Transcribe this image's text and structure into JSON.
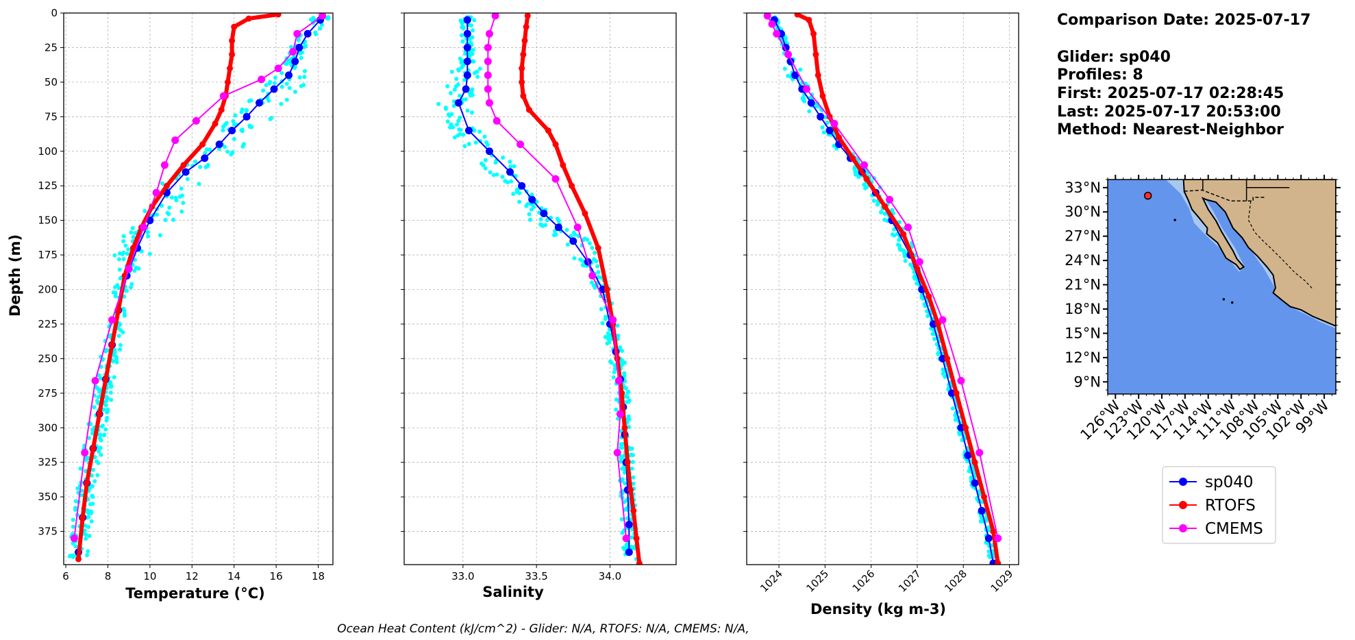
{
  "chart_data": [
    {
      "type": "line",
      "panel": "temperature",
      "xlabel": "Temperature (°C)",
      "ylabel": "Depth (m)",
      "xlim": [
        5.9,
        18.7
      ],
      "ylim": [
        399,
        0
      ],
      "xticks": [
        6,
        8,
        10,
        12,
        14,
        16,
        18
      ],
      "yticks": [
        0,
        25,
        50,
        75,
        100,
        125,
        150,
        175,
        200,
        225,
        250,
        275,
        300,
        325,
        350,
        375
      ],
      "grid": true,
      "series": [
        {
          "name": "sp040",
          "color": "#0000ff",
          "marker": "o",
          "x": [
            18.1,
            17.5,
            17.1,
            16.9,
            16.6,
            15.9,
            15.2,
            14.6,
            13.9,
            13.3,
            12.6,
            11.7,
            10.8,
            10.0,
            9.4,
            8.9,
            8.5,
            8.2,
            7.9,
            7.6,
            7.3,
            7.0,
            6.8,
            6.6
          ],
          "y": [
            5,
            15,
            25,
            35,
            45,
            55,
            65,
            75,
            85,
            95,
            105,
            115,
            130,
            150,
            170,
            190,
            215,
            240,
            265,
            290,
            315,
            340,
            365,
            390
          ]
        },
        {
          "name": "RTOFS",
          "color": "#ff0000",
          "marker": "o",
          "x": [
            16.1,
            14.7,
            14.0,
            13.9,
            13.9,
            13.8,
            13.7,
            13.6,
            13.4,
            13.1,
            12.5,
            11.6,
            10.8,
            10.1,
            9.6,
            9.2,
            8.8,
            8.5,
            8.2,
            7.9,
            7.6,
            7.3,
            7.0,
            6.8,
            6.6
          ],
          "y": [
            1,
            4,
            10,
            20,
            30,
            40,
            50,
            60,
            70,
            80,
            95,
            110,
            125,
            140,
            155,
            170,
            190,
            215,
            240,
            265,
            290,
            315,
            340,
            365,
            395
          ]
        },
        {
          "name": "CMEMS",
          "color": "#ff00ff",
          "marker": "o",
          "x": [
            18.2,
            17.0,
            16.8,
            16.1,
            15.3,
            13.5,
            12.2,
            11.2,
            10.7,
            10.3,
            9.7,
            9.0,
            8.2,
            7.4,
            6.9,
            6.4
          ],
          "y": [
            2,
            15,
            28,
            40,
            48,
            60,
            78,
            92,
            110,
            130,
            155,
            185,
            222,
            266,
            318,
            380
          ]
        }
      ]
    },
    {
      "type": "line",
      "panel": "salinity",
      "xlabel": "Salinity",
      "xlim": [
        32.6,
        34.45
      ],
      "ylim": [
        399,
        0
      ],
      "xticks": [
        "33.0",
        "33.5",
        "34.0"
      ],
      "grid": true,
      "series": [
        {
          "name": "sp040",
          "color": "#0000ff",
          "marker": "o",
          "x": [
            33.03,
            33.03,
            33.03,
            33.03,
            33.03,
            33.02,
            32.97,
            33.04,
            33.18,
            33.32,
            33.4,
            33.47,
            33.55,
            33.65,
            33.75,
            33.85,
            33.95,
            34.0,
            34.04,
            34.07,
            34.09,
            34.1,
            34.11,
            34.12,
            34.13,
            34.13
          ],
          "y": [
            5,
            15,
            25,
            35,
            45,
            55,
            65,
            85,
            100,
            115,
            125,
            135,
            145,
            155,
            165,
            180,
            200,
            225,
            245,
            265,
            285,
            305,
            325,
            345,
            370,
            390
          ]
        },
        {
          "name": "RTOFS",
          "color": "#ff0000",
          "marker": "o",
          "x": [
            33.44,
            33.43,
            33.42,
            33.41,
            33.4,
            33.4,
            33.41,
            33.45,
            33.58,
            33.63,
            33.68,
            33.74,
            33.83,
            33.92,
            33.98,
            34.02,
            34.05,
            34.08,
            34.1,
            34.12,
            34.14,
            34.16,
            34.18,
            34.2
          ],
          "y": [
            2,
            10,
            20,
            30,
            40,
            50,
            60,
            70,
            85,
            95,
            110,
            125,
            145,
            170,
            200,
            225,
            250,
            275,
            300,
            325,
            345,
            360,
            380,
            398
          ]
        },
        {
          "name": "CMEMS",
          "color": "#ff00ff",
          "marker": "o",
          "x": [
            33.22,
            33.18,
            33.17,
            33.17,
            33.17,
            33.17,
            33.18,
            33.23,
            33.39,
            33.63,
            33.78,
            33.88,
            34.02,
            34.06,
            34.07,
            34.05,
            34.11
          ],
          "y": [
            2,
            15,
            25,
            35,
            45,
            55,
            65,
            78,
            95,
            120,
            155,
            190,
            222,
            266,
            290,
            318,
            380
          ]
        }
      ]
    },
    {
      "type": "line",
      "panel": "density",
      "xlabel": "Density (kg m-3)",
      "xlim": [
        1023.3,
        1029.2
      ],
      "ylim": [
        399,
        0
      ],
      "xticks": [
        1024,
        1025,
        1026,
        1027,
        1028,
        1029
      ],
      "grid": true,
      "series": [
        {
          "name": "sp040",
          "color": "#0000ff",
          "marker": "o",
          "x": [
            1023.9,
            1024.05,
            1024.15,
            1024.25,
            1024.35,
            1024.5,
            1024.7,
            1024.9,
            1025.1,
            1025.3,
            1025.55,
            1025.8,
            1026.1,
            1026.45,
            1026.85,
            1027.1,
            1027.35,
            1027.55,
            1027.75,
            1027.95,
            1028.1,
            1028.25,
            1028.4,
            1028.55,
            1028.65
          ],
          "y": [
            5,
            15,
            25,
            35,
            45,
            55,
            65,
            75,
            85,
            95,
            105,
            115,
            130,
            150,
            175,
            200,
            225,
            250,
            275,
            300,
            320,
            340,
            360,
            380,
            398
          ]
        },
        {
          "name": "RTOFS",
          "color": "#ff0000",
          "marker": "o",
          "x": [
            1024.4,
            1024.65,
            1024.75,
            1024.8,
            1024.85,
            1024.95,
            1025.1,
            1025.3,
            1025.6,
            1025.9,
            1026.3,
            1026.7,
            1027.0,
            1027.25,
            1027.45,
            1027.65,
            1027.85,
            1028.05,
            1028.25,
            1028.45,
            1028.65,
            1028.75
          ],
          "y": [
            1,
            5,
            15,
            30,
            45,
            60,
            75,
            90,
            105,
            120,
            140,
            160,
            185,
            205,
            225,
            250,
            275,
            300,
            325,
            350,
            375,
            398
          ]
        },
        {
          "name": "CMEMS",
          "color": "#ff00ff",
          "marker": "o",
          "x": [
            1023.75,
            1023.85,
            1023.95,
            1024.2,
            1024.6,
            1025.2,
            1025.85,
            1026.4,
            1026.8,
            1027.05,
            1027.55,
            1027.95,
            1028.35,
            1028.75
          ],
          "y": [
            2,
            8,
            15,
            30,
            55,
            80,
            110,
            135,
            155,
            180,
            222,
            266,
            318,
            380
          ]
        }
      ]
    }
  ],
  "info": {
    "comparison_date": "Comparison Date: 2025-07-17",
    "glider": "Glider: sp040",
    "profiles": "Profiles: 8",
    "first": "First: 2025-07-17 02:28:45",
    "last": "Last: 2025-07-17 20:53:00",
    "method": "Method: Nearest-Neighbor"
  },
  "map": {
    "lat_range": [
      7.5,
      34.0
    ],
    "lon_range": [
      -127.0,
      -97.5
    ],
    "lat_ticks": [
      "33°N",
      "30°N",
      "27°N",
      "24°N",
      "21°N",
      "18°N",
      "15°N",
      "12°N",
      "9°N"
    ],
    "lon_ticks": [
      "126°W",
      "123°W",
      "120°W",
      "117°W",
      "114°W",
      "111°W",
      "108°W",
      "105°W",
      "102°W",
      "99°W"
    ],
    "glider_location": {
      "lon": -121.8,
      "lat": 32.0
    },
    "ocean_color": "#6495ed",
    "land_color": "#d2b48c"
  },
  "legend": {
    "placement": "bottom-right",
    "entries": [
      {
        "label": "sp040",
        "color": "#0000ff"
      },
      {
        "label": "RTOFS",
        "color": "#ff0000"
      },
      {
        "label": "CMEMS",
        "color": "#ff00ff"
      }
    ]
  },
  "footer": "Ocean Heat Content (kJ/cm^2) - Glider: N/A,  RTOFS: N/A,  CMEMS: N/A,"
}
